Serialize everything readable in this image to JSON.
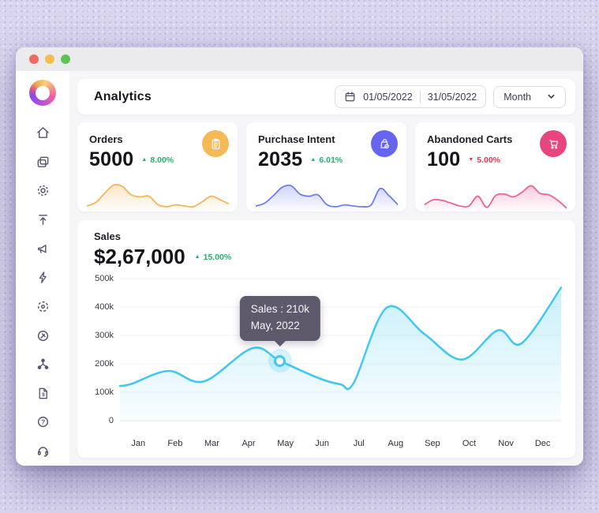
{
  "window": {
    "titlebar_buttons": [
      "close",
      "minimize",
      "zoom"
    ]
  },
  "sidebar": {
    "logo": "brand-logo",
    "items": [
      {
        "icon": "home"
      },
      {
        "icon": "pages"
      },
      {
        "icon": "settings-gear"
      },
      {
        "icon": "upload"
      },
      {
        "icon": "megaphone"
      },
      {
        "icon": "lightning-bolt"
      },
      {
        "icon": "target"
      },
      {
        "icon": "plug"
      },
      {
        "icon": "share-nodes"
      },
      {
        "icon": "invoice"
      },
      {
        "icon": "help"
      },
      {
        "icon": "headset"
      }
    ]
  },
  "header": {
    "title": "Analytics",
    "date_range": {
      "icon": "calendar",
      "start": "01/05/2022",
      "end": "31/05/2022"
    },
    "period_dropdown": {
      "value": "Month",
      "icon": "chevron-down"
    }
  },
  "stats": [
    {
      "label": "Orders",
      "value": "5000",
      "trend": "8.00%",
      "trend_direction": "up",
      "icon": "clipboard",
      "accent": "#F5BA55",
      "line_color": "#F2B355",
      "spark": [
        12,
        22,
        48,
        72,
        68,
        44,
        38,
        40,
        16,
        10,
        15,
        12,
        10,
        24,
        40,
        30,
        18
      ]
    },
    {
      "label": "Purchase Intent",
      "value": "2035",
      "trend": "6.01%",
      "trend_direction": "up",
      "icon": "bag-check",
      "accent": "#6565EF",
      "line_color": "#6D79F0",
      "spark": [
        12,
        20,
        42,
        66,
        70,
        46,
        40,
        44,
        16,
        10,
        15,
        12,
        10,
        15,
        62,
        42,
        16
      ]
    },
    {
      "label": "Abandoned Carts",
      "value": "100",
      "trend": "5.00%",
      "trend_direction": "down",
      "icon": "shopping-cart",
      "accent": "#E8457E",
      "line_color": "#EC5F93",
      "spark": [
        16,
        30,
        28,
        20,
        12,
        12,
        40,
        8,
        42,
        46,
        38,
        52,
        70,
        48,
        44,
        28,
        6
      ]
    }
  ],
  "sales": {
    "label": "Sales",
    "value": "$2,67,000",
    "trend": "15.00%",
    "trend_direction": "up",
    "tooltip": {
      "line1": "Sales : 210k",
      "line2": "May, 2022"
    },
    "chart_data": {
      "type": "area",
      "x_labels": [
        "Jan",
        "Feb",
        "Mar",
        "Apr",
        "May",
        "Jun",
        "Jul",
        "Aug",
        "Sep",
        "Oct",
        "Nov",
        "Dec"
      ],
      "y_ticks": [
        "500k",
        "400k",
        "300k",
        "200k",
        "100k",
        "0"
      ],
      "y_max_k": 500,
      "line_color": "#41C8F2",
      "points_fraction_valueK": [
        [
          0.0,
          122
        ],
        [
          0.027,
          130
        ],
        [
          0.11,
          175
        ],
        [
          0.19,
          138
        ],
        [
          0.3,
          255
        ],
        [
          0.363,
          210
        ],
        [
          0.45,
          150
        ],
        [
          0.5,
          128
        ],
        [
          0.53,
          133
        ],
        [
          0.605,
          398
        ],
        [
          0.69,
          305
        ],
        [
          0.775,
          215
        ],
        [
          0.857,
          318
        ],
        [
          0.91,
          272
        ],
        [
          1.0,
          468
        ]
      ],
      "marker_index": 5,
      "grid": "horizontal"
    }
  },
  "colors": {
    "trend_up": "#23B26D",
    "trend_down": "#E8364C",
    "chart_line": "#41C8F2",
    "tooltip_bg": "#5E5A6C",
    "traffic_lights": [
      "#EE6A5F",
      "#F5BD4F",
      "#61C354"
    ]
  }
}
